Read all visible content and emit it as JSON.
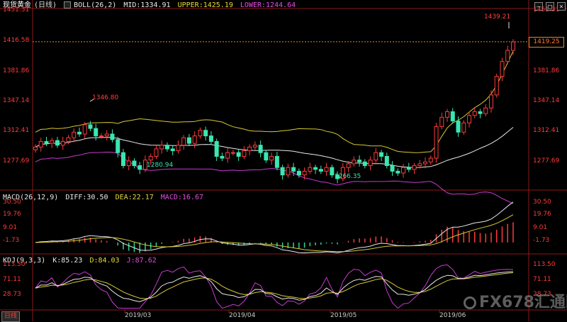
{
  "main_header": {
    "title": "现货黄金",
    "cycle": "(日线)",
    "boll_label": "BOLL(26,2)",
    "mid": "MID:1334.91",
    "upper": "UPPER:1425.19",
    "lower": "LOWER:1244.64"
  },
  "macd_header": {
    "label": "MACD(26,12,9)",
    "diff": "DIFF:30.50",
    "dea": "DEA:22.17",
    "macd": "MACD:16.67"
  },
  "kdj_header": {
    "label": "KDJ(9,3,3)",
    "k": "K:85.23",
    "d": "D:84.03",
    "j": "J:87.62"
  },
  "price_axis": [
    "1451.31",
    "1416.58",
    "1381.86",
    "1347.14",
    "1312.41",
    "1277.69"
  ],
  "macd_axis": [
    "30.50",
    "19.76",
    "9.01",
    "-1.73"
  ],
  "kdj_axis": [
    "113.50",
    "71.11",
    "28.73"
  ],
  "dates": [
    "2019/03",
    "2019/04",
    "2019/05",
    "2019/06"
  ],
  "current_price": "1419.25",
  "annotations": {
    "high_1": "1346.80",
    "low_1": "1280.94",
    "low_2": "1266.35",
    "high_2": "1439.21"
  },
  "period_button": "日线",
  "watermark": "FX678汇通网",
  "colors": {
    "up": "#ff3b3b",
    "down": "#3be6b0",
    "mid": "#e8e8e8",
    "upper": "#d8c832",
    "lower": "#c93ad0",
    "axis": "#ff3b3b",
    "grid": "#8b1a1a"
  },
  "chart_data": {
    "type": "candlestick",
    "series_close": [
      1306,
      1312,
      1310,
      1313,
      1308,
      1312,
      1316,
      1322,
      1320,
      1330,
      1326,
      1318,
      1318,
      1320,
      1314,
      1300,
      1286,
      1291,
      1286,
      1282,
      1292,
      1296,
      1304,
      1308,
      1304,
      1302,
      1308,
      1316,
      1310,
      1318,
      1324,
      1318,
      1312,
      1296,
      1294,
      1300,
      1300,
      1296,
      1302,
      1306,
      1308,
      1300,
      1292,
      1296,
      1284,
      1276,
      1284,
      1280,
      1276,
      1280,
      1284,
      1282,
      1280,
      1284,
      1276,
      1272,
      1284,
      1288,
      1292,
      1290,
      1286,
      1292,
      1300,
      1296,
      1286,
      1280,
      1278,
      1284,
      1282,
      1286,
      1288,
      1290,
      1294,
      1328,
      1338,
      1344,
      1334,
      1322,
      1332,
      1340,
      1344,
      1342,
      1348,
      1362,
      1382,
      1398,
      1410,
      1419
    ],
    "boll_mid_last": 1334.91,
    "boll_upper_last": 1425.19,
    "boll_lower_last": 1244.64,
    "macd": {
      "diff": 30.5,
      "dea": 22.17,
      "macd": 16.67
    },
    "kdj": {
      "k": 85.23,
      "d": 84.03,
      "j": 87.62
    },
    "ylim_price": [
      1262,
      1455
    ],
    "ylim_macd": [
      -7,
      32
    ],
    "ylim_kdj": [
      0,
      120
    ]
  }
}
